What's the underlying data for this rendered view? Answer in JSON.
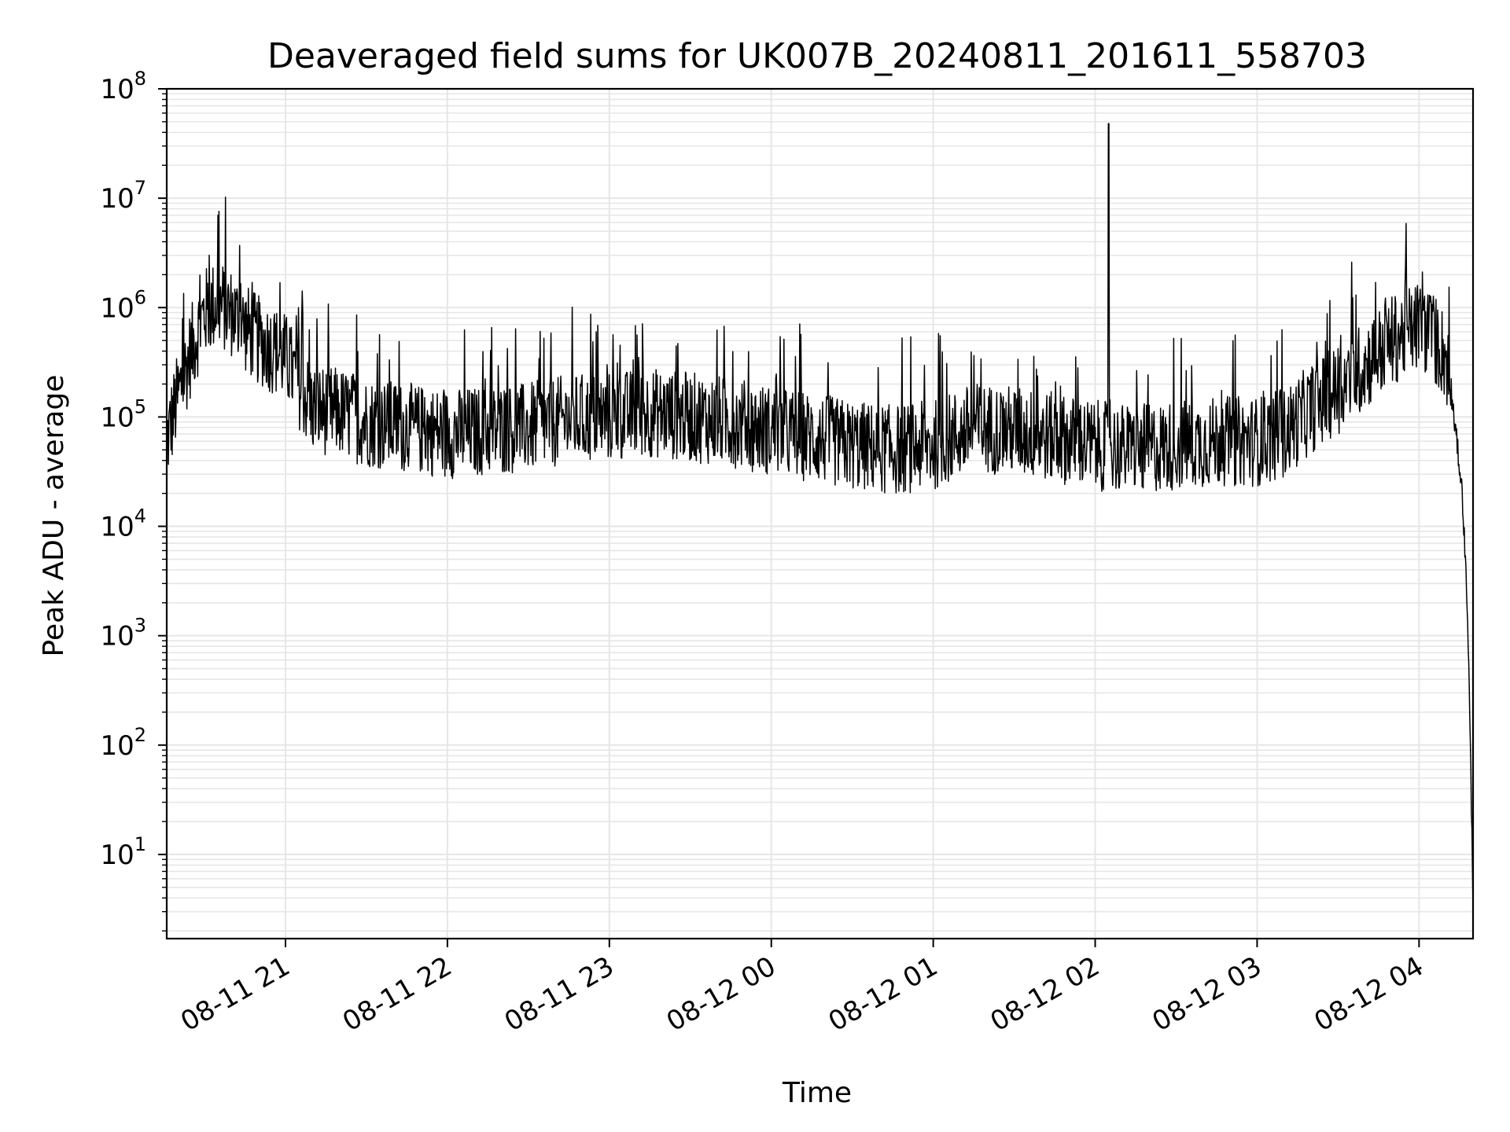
{
  "chart_data": {
    "type": "line",
    "title": "Deaveraged field sums for UK007B_20240811_201611_558703",
    "xlabel": "Time",
    "ylabel": "Peak ADU - average",
    "yscale": "log",
    "ylim": [
      1.7,
      100000000
    ],
    "xlim": [
      "2024-08-11 20:16",
      "2024-08-12 04:20"
    ],
    "grid": true,
    "line_color": "#000000",
    "grid_color": "#e6e6e6",
    "x_ticks": [
      {
        "value": "2024-08-11 21:00",
        "label": "08-11 21"
      },
      {
        "value": "2024-08-11 22:00",
        "label": "08-11 22"
      },
      {
        "value": "2024-08-11 23:00",
        "label": "08-11 23"
      },
      {
        "value": "2024-08-12 00:00",
        "label": "08-12 00"
      },
      {
        "value": "2024-08-12 01:00",
        "label": "08-12 01"
      },
      {
        "value": "2024-08-12 02:00",
        "label": "08-12 02"
      },
      {
        "value": "2024-08-12 03:00",
        "label": "08-12 03"
      },
      {
        "value": "2024-08-12 04:00",
        "label": "08-12 04"
      }
    ],
    "y_ticks": [
      {
        "value": 10,
        "base": "10",
        "exp": "1"
      },
      {
        "value": 100,
        "base": "10",
        "exp": "2"
      },
      {
        "value": 1000,
        "base": "10",
        "exp": "3"
      },
      {
        "value": 10000,
        "base": "10",
        "exp": "4"
      },
      {
        "value": 100000,
        "base": "10",
        "exp": "5"
      },
      {
        "value": 1000000,
        "base": "10",
        "exp": "6"
      },
      {
        "value": 10000000,
        "base": "10",
        "exp": "7"
      },
      {
        "value": 100000000,
        "base": "10",
        "exp": "8"
      }
    ],
    "series": [
      {
        "x": [
          "2024-08-11 20:16",
          "2024-08-11 20:20",
          "2024-08-11 20:25",
          "2024-08-11 20:30",
          "2024-08-11 20:35",
          "2024-08-11 20:40",
          "2024-08-11 20:45",
          "2024-08-11 20:50",
          "2024-08-11 20:55",
          "2024-08-11 21:00",
          "2024-08-11 21:05",
          "2024-08-11 21:10",
          "2024-08-11 21:20",
          "2024-08-11 21:30",
          "2024-08-11 21:45",
          "2024-08-11 22:00",
          "2024-08-11 22:15",
          "2024-08-11 22:30",
          "2024-08-11 22:45",
          "2024-08-11 23:00",
          "2024-08-11 23:15",
          "2024-08-11 23:30",
          "2024-08-11 23:45",
          "2024-08-12 00:00",
          "2024-08-12 00:15",
          "2024-08-12 00:30",
          "2024-08-12 00:45",
          "2024-08-12 01:00",
          "2024-08-12 01:15",
          "2024-08-12 01:30",
          "2024-08-12 01:45",
          "2024-08-12 02:00",
          "2024-08-12 02:15",
          "2024-08-12 02:30",
          "2024-08-12 02:45",
          "2024-08-12 03:00",
          "2024-08-12 03:10",
          "2024-08-12 03:20",
          "2024-08-12 03:30",
          "2024-08-12 03:40",
          "2024-08-12 03:50",
          "2024-08-12 04:00",
          "2024-08-12 04:05",
          "2024-08-12 04:10",
          "2024-08-12 04:12",
          "2024-08-12 04:14",
          "2024-08-12 04:16",
          "2024-08-12 04:17",
          "2024-08-12 04:18",
          "2024-08-12 04:19",
          "2024-08-12 04:20"
        ],
        "y": [
          60000,
          150000,
          400000,
          900000,
          1100000,
          900000,
          650000,
          500000,
          420000,
          350000,
          200000,
          120000,
          110000,
          90000,
          80000,
          70000,
          75000,
          80000,
          95000,
          100000,
          110000,
          100000,
          90000,
          75000,
          65000,
          55000,
          50000,
          55000,
          80000,
          75000,
          65000,
          55000,
          50000,
          55000,
          60000,
          60000,
          70000,
          120000,
          180000,
          300000,
          500000,
          700000,
          550000,
          350000,
          150000,
          60000,
          20000,
          6000,
          1500,
          100,
          4
        ],
        "noise_factor": 2.6,
        "spikes": [
          {
            "x": "2024-08-11 20:35",
            "y": 7000000
          },
          {
            "x": "2024-08-11 20:43",
            "y": 3700000
          },
          {
            "x": "2024-08-12 02:05",
            "y": 48000000
          },
          {
            "x": "2024-08-12 03:35",
            "y": 2600000
          },
          {
            "x": "2024-08-12 03:55",
            "y": 2500000
          }
        ]
      }
    ]
  }
}
